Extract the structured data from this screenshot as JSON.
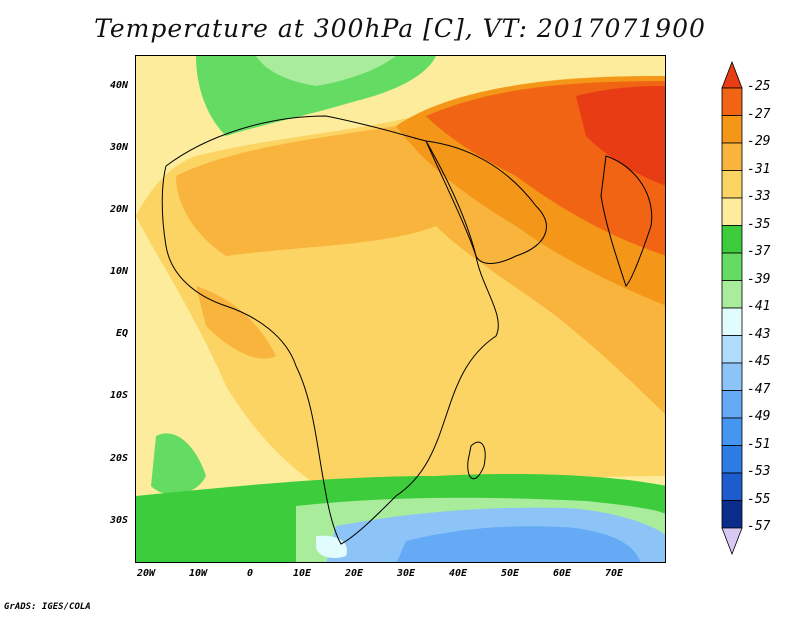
{
  "title": "Temperature at 300hPa [C], VT: 2017071900",
  "credit": "GrADS: IGES/COLA",
  "lat_labels": [
    "40N",
    "30N",
    "20N",
    "10N",
    "EQ",
    "10S",
    "20S",
    "30S"
  ],
  "lon_labels": [
    "20W",
    "10W",
    "0",
    "10E",
    "20E",
    "30E",
    "40E",
    "50E",
    "60E",
    "70E"
  ],
  "colorbar": {
    "labels": [
      "-25",
      "-27",
      "-29",
      "-31",
      "-33",
      "-35",
      "-37",
      "-39",
      "-41",
      "-43",
      "-45",
      "-47",
      "-49",
      "-51",
      "-53",
      "-55",
      "-57"
    ],
    "colors": [
      "#e83c14",
      "#f06414",
      "#f49618",
      "#f8b43c",
      "#fcd464",
      "#fcec9c",
      "#3ccc3c",
      "#64dc64",
      "#a8ec9c",
      "#e0fcfc",
      "#b0dcfc",
      "#8cc4f8",
      "#64aaf4",
      "#4496f0",
      "#2c7ce4",
      "#1c5ccc",
      "#0c2c8c",
      "#d8c8f4"
    ]
  }
}
